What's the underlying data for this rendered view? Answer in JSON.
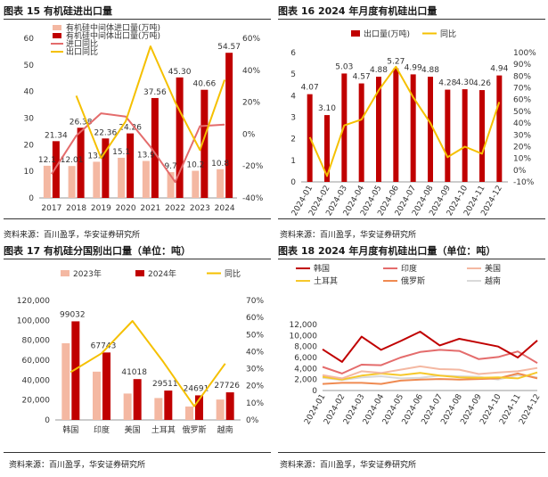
{
  "colors": {
    "dark_red": "#c00000",
    "pink": "#e46c6c",
    "gold": "#f5c000",
    "light_salmon": "#f4b8a2",
    "orange": "#ef8a51",
    "yellow_line": "#f6c82b",
    "grey_line": "#d9d9d9"
  },
  "sources": {
    "s1": "资料来源：百川盈孚，华安证券研究所",
    "s2": "资料来源：百川盈孚，华安证券研究所",
    "s3": "资料来源：百川盈孚，华安证券研究所",
    "s4": "资料来源：百川盈孚，华安证券研究所"
  },
  "chart_data": [
    {
      "title": "图表 15  有机硅进出口量",
      "type": "bar",
      "categories": [
        "2017",
        "2018",
        "2019",
        "2020",
        "2021",
        "2022",
        "2023",
        "2024"
      ],
      "series": [
        {
          "name": "有机硅中间体进口量(万吨)",
          "values": [
            12.1,
            12.0,
            13.6,
            15.1,
            13.9,
            9.7,
            10.2,
            10.8
          ],
          "labels": [
            "12.1",
            "12.01",
            "13.6",
            "15.1",
            "13.9",
            "9.7",
            "10.2",
            "10.8"
          ]
        },
        {
          "name": "有机硅中间体出口量(万吨)",
          "values": [
            21.34,
            26.38,
            22.36,
            24.26,
            37.56,
            45.3,
            40.66,
            54.57
          ],
          "labels": [
            "21.34",
            "26.38",
            "22.36",
            "24.26",
            "37.56",
            "45.30",
            "40.66",
            "54.57"
          ]
        },
        {
          "name": "进口同比",
          "axis": "right",
          "values": [
            -25,
            -1,
            13,
            11,
            -8,
            -30,
            5,
            6
          ]
        },
        {
          "name": "出口同比",
          "axis": "right",
          "values": [
            null,
            24,
            -15,
            8,
            55,
            20,
            -10,
            34
          ]
        }
      ],
      "ylim": [
        0,
        60
      ],
      "yticks": [
        "0",
        "10",
        "20",
        "30",
        "40",
        "50",
        "60"
      ],
      "y2lim": [
        -40,
        60
      ],
      "y2ticks": [
        "-40%",
        "-20%",
        "0%",
        "20%",
        "40%",
        "60%"
      ]
    },
    {
      "title": "图表 16  2024 年月度有机硅出口量",
      "type": "bar",
      "categories": [
        "2024-01",
        "2024-02",
        "2024-03",
        "2024-04",
        "2024-05",
        "2024-06",
        "2024-07",
        "2024-08",
        "2024-09",
        "2024-10",
        "2024-11",
        "2024-12"
      ],
      "series": [
        {
          "name": "出口量(万吨)",
          "values": [
            4.07,
            3.1,
            5.03,
            4.57,
            4.88,
            5.27,
            4.99,
            4.88,
            4.28,
            4.3,
            4.26,
            4.94
          ],
          "labels": [
            "4.07",
            "3.10",
            "5.03",
            "4.57",
            "4.88",
            "5.27",
            "4.99",
            "4.88",
            "4.28",
            "4.30",
            "4.26",
            "4.94"
          ]
        },
        {
          "name": "同比",
          "axis": "right",
          "values": [
            28,
            -5,
            38,
            43,
            68,
            88,
            62,
            40,
            11,
            20,
            14,
            58
          ]
        }
      ],
      "ylim": [
        0,
        6
      ],
      "yticks": [
        "0",
        "1",
        "2",
        "3",
        "4",
        "5",
        "6"
      ],
      "y2lim": [
        -10,
        100
      ],
      "y2ticks": [
        "-10%",
        "0%",
        "10%",
        "20%",
        "30%",
        "40%",
        "50%",
        "60%",
        "70%",
        "80%",
        "90%",
        "100%"
      ]
    },
    {
      "title": "图表 17  有机硅分国别出口量（单位：吨）",
      "type": "bar",
      "categories": [
        "韩国",
        "印度",
        "美国",
        "土耳其",
        "俄罗斯",
        "越南"
      ],
      "series": [
        {
          "name": "2023年",
          "values": [
            77000,
            48500,
            26500,
            22000,
            13500,
            20500
          ]
        },
        {
          "name": "2024年",
          "values": [
            99032,
            67743,
            41018,
            29511,
            24691,
            27726
          ],
          "labels": [
            "99032",
            "67743",
            "41018",
            "29511",
            "24691",
            "27726"
          ]
        },
        {
          "name": "同比",
          "axis": "right",
          "values": [
            28,
            39,
            58,
            34,
            8,
            33
          ]
        }
      ],
      "ylim": [
        0,
        120000
      ],
      "yticks": [
        "0",
        "20,000",
        "40,000",
        "60,000",
        "80,000",
        "100,000",
        "120,000"
      ],
      "y2lim": [
        0,
        70
      ],
      "y2ticks": [
        "0%",
        "10%",
        "20%",
        "30%",
        "40%",
        "50%",
        "60%",
        "70%"
      ]
    },
    {
      "title": "图表 18  2024 年月度有机硅出口量（单位：吨）",
      "type": "line",
      "categories": [
        "2024-01",
        "2024-02",
        "2024-03",
        "2024-04",
        "2024-05",
        "2024-06",
        "2024-07",
        "2024-08",
        "2024-09",
        "2024-10",
        "2024-11",
        "2024-12"
      ],
      "series": [
        {
          "name": "韩国",
          "values": [
            7500,
            5200,
            9800,
            7400,
            9000,
            10700,
            8200,
            9400,
            8700,
            8000,
            6000,
            9100
          ]
        },
        {
          "name": "印度",
          "values": [
            4300,
            3100,
            4700,
            4600,
            6000,
            7000,
            7400,
            7200,
            5700,
            6100,
            7100,
            5000
          ]
        },
        {
          "name": "美国",
          "values": [
            2800,
            2200,
            3500,
            3200,
            3800,
            4400,
            3900,
            3800,
            3000,
            3300,
            3500,
            4100
          ]
        },
        {
          "name": "土耳其",
          "values": [
            2500,
            2000,
            2700,
            3100,
            2800,
            3200,
            2700,
            2400,
            2300,
            2400,
            2200,
            3300
          ]
        },
        {
          "name": "俄罗斯",
          "values": [
            1200,
            1400,
            1400,
            1200,
            1800,
            2000,
            2100,
            2000,
            2100,
            2200,
            3100,
            2200
          ]
        },
        {
          "name": "越南",
          "values": [
            2300,
            1900,
            2400,
            2600,
            2200,
            2300,
            2700,
            2600,
            2500,
            2000,
            2800,
            2400
          ]
        }
      ],
      "ylim": [
        0,
        12000
      ],
      "yticks": [
        "0",
        "2,000",
        "4,000",
        "6,000",
        "8,000",
        "10,000",
        "12,000"
      ]
    }
  ]
}
